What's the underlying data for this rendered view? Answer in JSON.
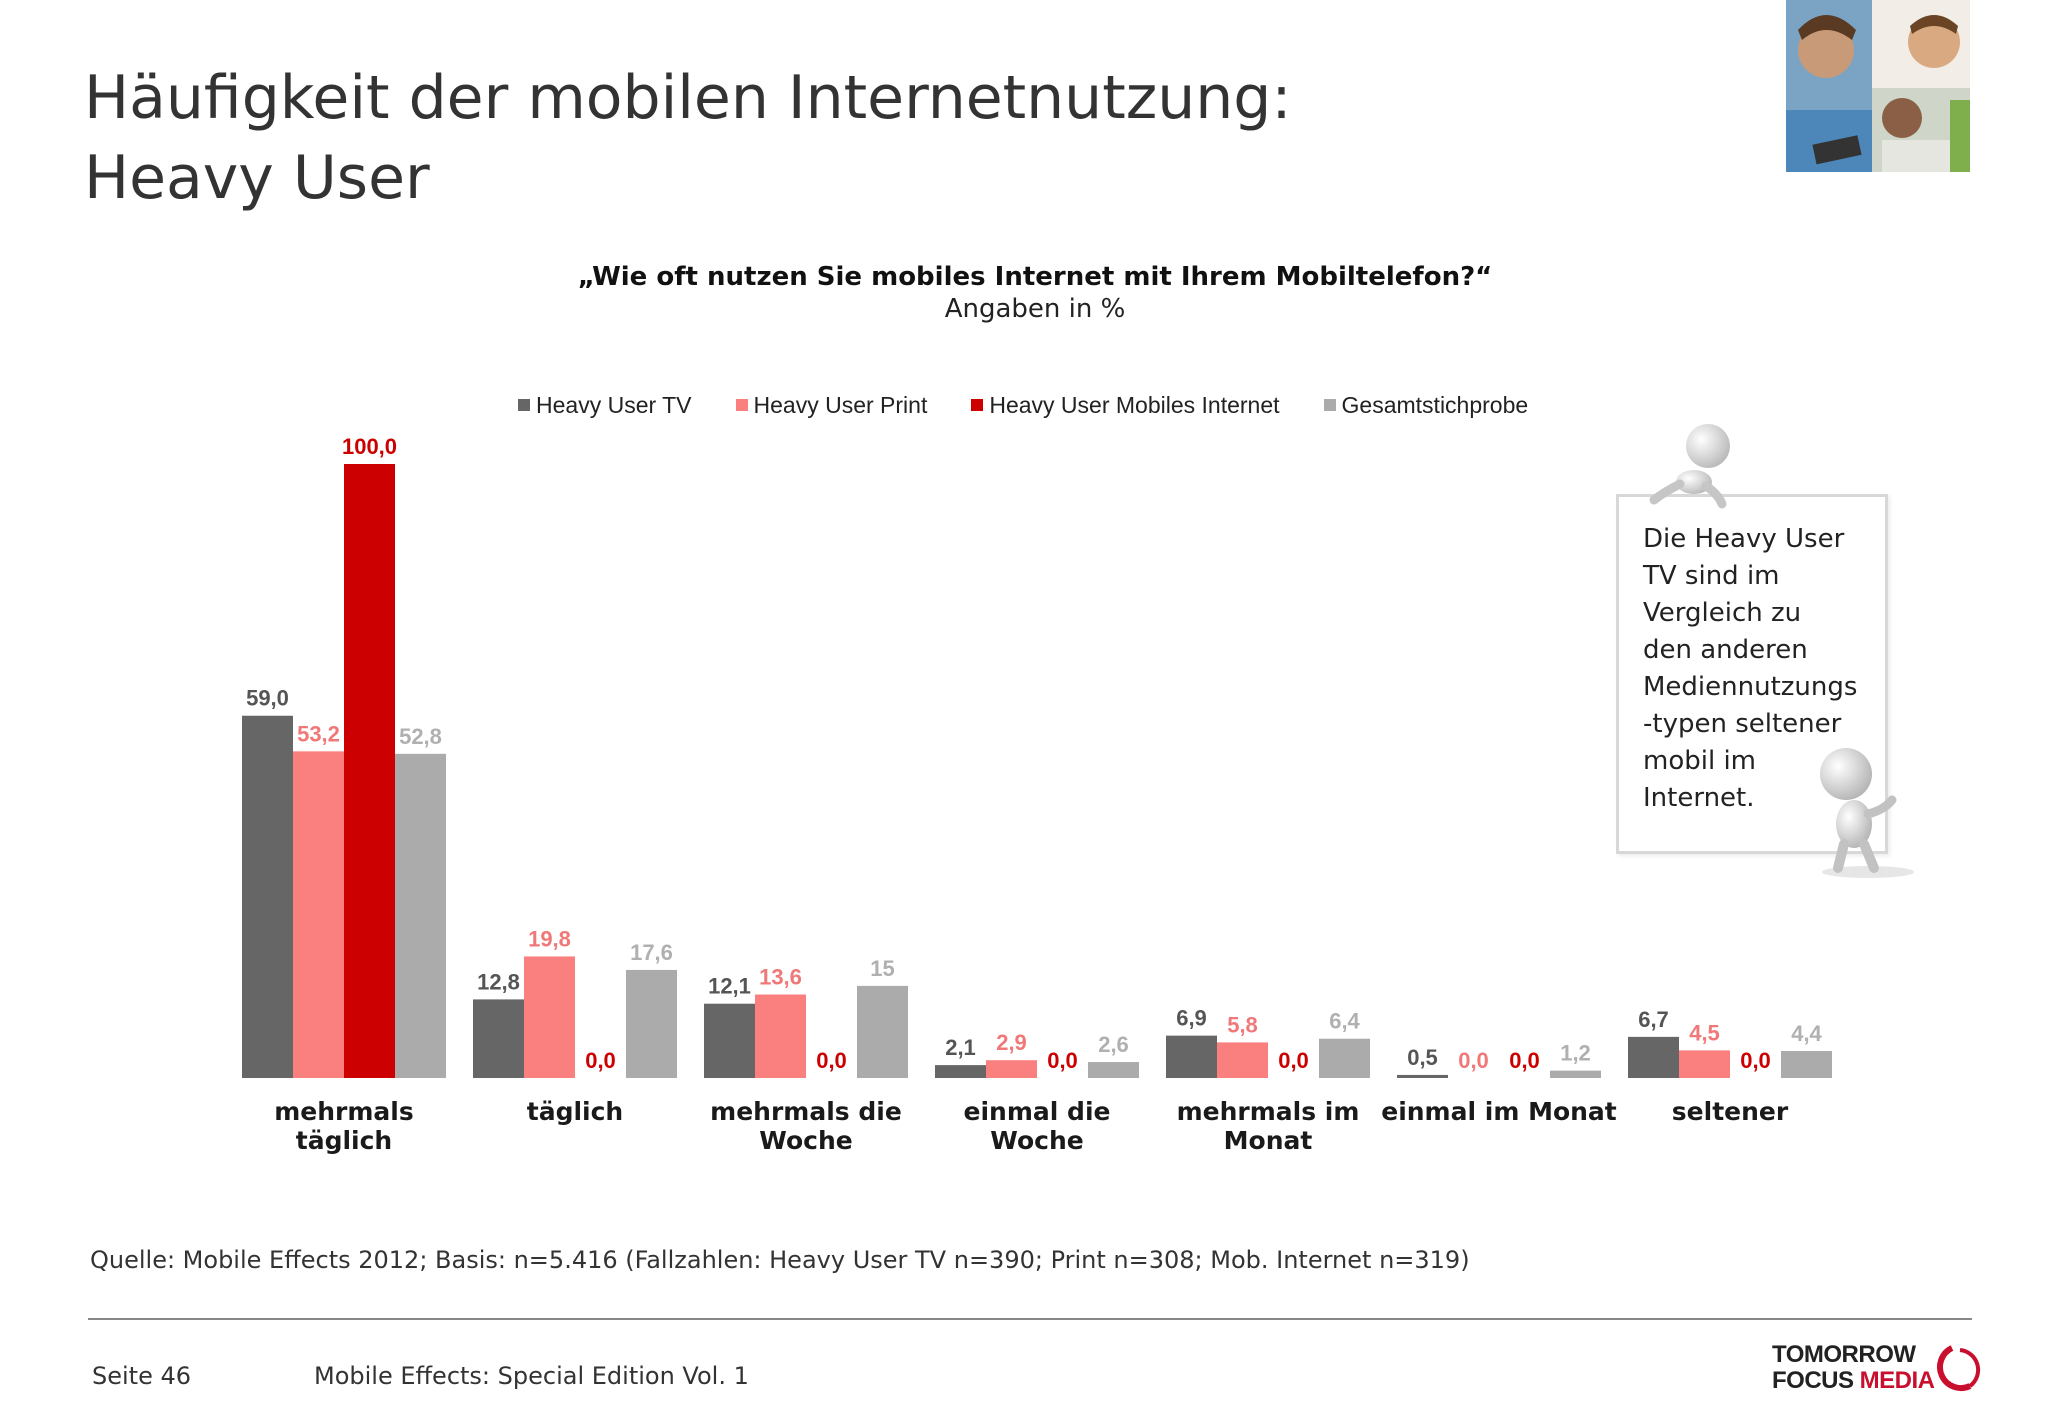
{
  "header": {
    "title_line1": "Häufigkeit der mobilen Internetnutzung:",
    "title_line2": "Heavy User"
  },
  "chart_data": {
    "type": "bar",
    "title": "„Wie oft nutzen Sie mobiles Internet mit Ihrem Mobiltelefon?“",
    "subtitle": "Angaben in %",
    "legend_position": "top",
    "grid": false,
    "ylim": [
      0,
      100
    ],
    "categories": [
      [
        "mehrmals",
        "täglich"
      ],
      [
        "täglich"
      ],
      [
        "mehrmals die",
        "Woche"
      ],
      [
        "einmal die",
        "Woche"
      ],
      [
        "mehrmals im",
        "Monat"
      ],
      [
        "einmal im Monat"
      ],
      [
        "seltener"
      ]
    ],
    "series": [
      {
        "name": "Heavy User TV",
        "color": "#666666",
        "label_color": "#555555",
        "values": [
          59.0,
          12.8,
          12.1,
          2.1,
          6.9,
          0.5,
          6.7
        ],
        "labels": [
          "59,0",
          "12,8",
          "12,1",
          "2,1",
          "6,9",
          "0,5",
          "6,7"
        ]
      },
      {
        "name": "Heavy User Print",
        "color": "#fa8080",
        "label_color": "#f07878",
        "values": [
          53.2,
          19.8,
          13.6,
          2.9,
          5.8,
          0.0,
          4.5
        ],
        "labels": [
          "53,2",
          "19,8",
          "13,6",
          "2,9",
          "5,8",
          "0,0",
          "4,5"
        ]
      },
      {
        "name": "Heavy User Mobiles Internet",
        "color": "#cc0000",
        "label_color": "#cc0000",
        "values": [
          100.0,
          0.0,
          0.0,
          0.0,
          0.0,
          0.0,
          0.0
        ],
        "labels": [
          "100,0",
          "0,0",
          "0,0",
          "0,0",
          "0,0",
          "0,0",
          "0,0"
        ]
      },
      {
        "name": "Gesamtstichprobe",
        "color": "#ababab",
        "label_color": "#b0b0b0",
        "values": [
          52.8,
          17.6,
          15,
          2.6,
          6.4,
          1.2,
          4.4
        ],
        "labels": [
          "52,8",
          "17,6",
          "15",
          "2,6",
          "6,4",
          "1,2",
          "4,4"
        ]
      }
    ]
  },
  "note": {
    "lines": [
      "Die Heavy User",
      "TV sind im",
      "Vergleich zu",
      "den anderen",
      "Mediennutzungs",
      "-typen seltener",
      "mobil im",
      "Internet."
    ]
  },
  "footer": {
    "source": "Quelle: Mobile Effects 2012; Basis: n=5.416 (Fallzahlen: Heavy User TV n=390; Print n=308; Mob. Internet n=319)",
    "page": "Seite 46",
    "edition": "Mobile Effects: Special Edition Vol. 1",
    "logo_line1": "TOMORROW",
    "logo_focus": "FOCUS",
    "logo_media": "MEDIA"
  }
}
